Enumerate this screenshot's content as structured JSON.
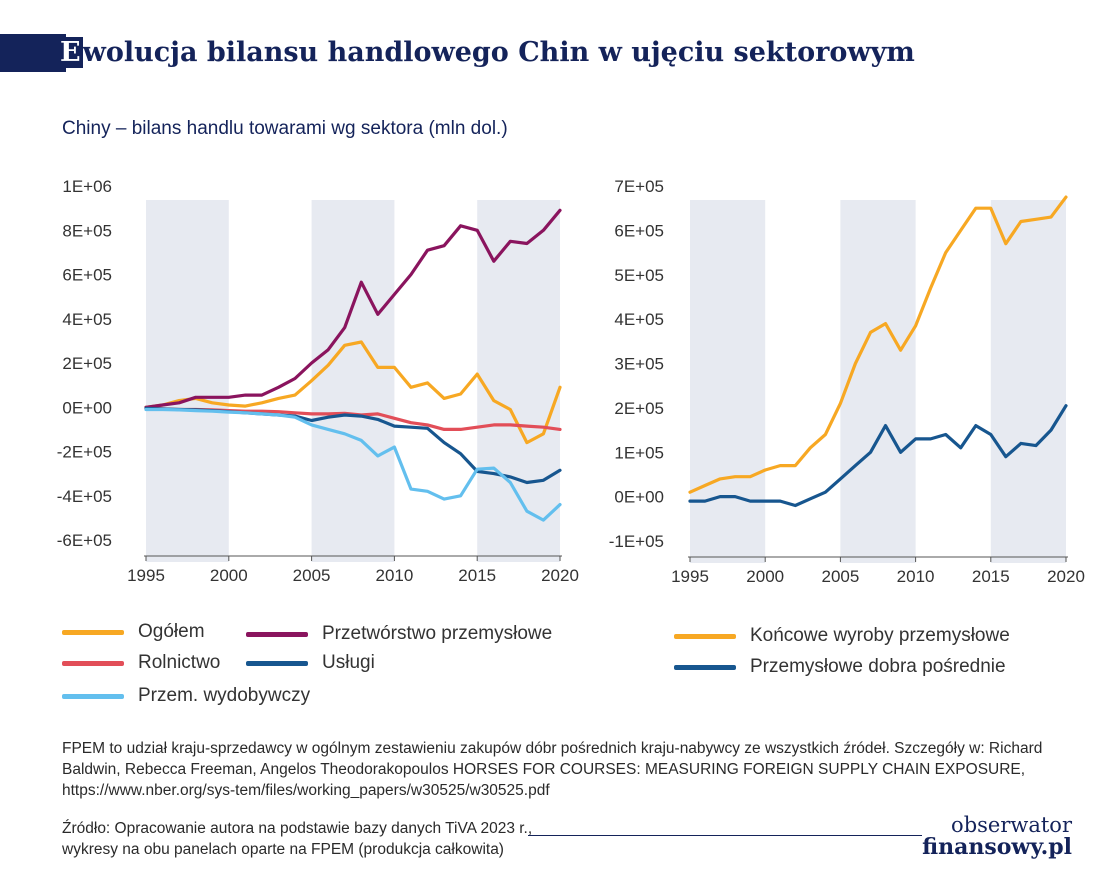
{
  "header": {
    "title_first": "E",
    "title_rest": "wolucja bilansu handlowego Chin w ujęciu sektorowym",
    "subtitle": "Chiny – bilans handlu towarami wg sektora (mln dol.)"
  },
  "colors": {
    "ogolem": "#f7a823",
    "przetworstwo": "#8a145e",
    "rolnictwo": "#e24e58",
    "uslugi": "#17568f",
    "wydobywczy": "#63bfee",
    "koncowe": "#f7a823",
    "posrednie": "#17568f",
    "shade": "#e7eaf1",
    "axis": "#555555"
  },
  "chart_data": [
    {
      "type": "line",
      "x": [
        1995,
        1996,
        1997,
        1998,
        1999,
        2000,
        2001,
        2002,
        2003,
        2004,
        2005,
        2006,
        2007,
        2008,
        2009,
        2010,
        2011,
        2012,
        2013,
        2014,
        2015,
        2016,
        2017,
        2018,
        2019,
        2020
      ],
      "ylim": [
        -600000,
        1000000
      ],
      "xlim": [
        1995,
        2020
      ],
      "yticks": [
        -600000,
        -400000,
        -200000,
        0,
        200000,
        400000,
        600000,
        800000,
        1000000
      ],
      "ytick_labels": [
        "-6E+05",
        "-4E+05",
        "-2E+05",
        "0E+00",
        "2E+05",
        "4E+05",
        "6E+05",
        "8E+05",
        "1E+06"
      ],
      "xticks": [
        1995,
        2000,
        2005,
        2010,
        2015,
        2020
      ],
      "shaded_ranges": [
        [
          1995,
          2000
        ],
        [
          2005,
          2010
        ],
        [
          2015,
          2020
        ]
      ],
      "series": [
        {
          "key": "ogolem",
          "name": "Ogółem",
          "values": [
            0,
            10000,
            30000,
            40000,
            20000,
            10000,
            5000,
            20000,
            40000,
            55000,
            120000,
            190000,
            280000,
            295000,
            180000,
            180000,
            90000,
            110000,
            40000,
            60000,
            150000,
            30000,
            -10000,
            -160000,
            -120000,
            90000
          ]
        },
        {
          "key": "przetworstwo",
          "name": "Przetwórstwo przemysłowe",
          "values": [
            0,
            10000,
            20000,
            45000,
            45000,
            45000,
            55000,
            55000,
            90000,
            130000,
            200000,
            260000,
            360000,
            565000,
            420000,
            510000,
            600000,
            710000,
            730000,
            820000,
            800000,
            660000,
            750000,
            740000,
            800000,
            890000
          ]
        },
        {
          "key": "rolnictwo",
          "name": "Rolnictwo",
          "values": [
            -5000,
            -8000,
            -10000,
            -10000,
            -12000,
            -15000,
            -18000,
            -18000,
            -20000,
            -25000,
            -30000,
            -30000,
            -28000,
            -35000,
            -30000,
            -50000,
            -70000,
            -80000,
            -100000,
            -100000,
            -90000,
            -80000,
            -80000,
            -85000,
            -90000,
            -100000
          ]
        },
        {
          "key": "uslugi",
          "name": "Usługi",
          "values": [
            -5000,
            -8000,
            -10000,
            -12000,
            -15000,
            -20000,
            -25000,
            -30000,
            -35000,
            -40000,
            -60000,
            -45000,
            -35000,
            -40000,
            -55000,
            -85000,
            -90000,
            -95000,
            -160000,
            -210000,
            -290000,
            -300000,
            -315000,
            -340000,
            -330000,
            -285000
          ]
        },
        {
          "key": "wydobywczy",
          "name": "Przem. wydobywczy",
          "values": [
            -10000,
            -10000,
            -12000,
            -15000,
            -18000,
            -22000,
            -25000,
            -30000,
            -35000,
            -45000,
            -80000,
            -100000,
            -120000,
            -150000,
            -220000,
            -180000,
            -370000,
            -380000,
            -415000,
            -400000,
            -280000,
            -275000,
            -340000,
            -470000,
            -510000,
            -440000
          ]
        }
      ]
    },
    {
      "type": "line",
      "x": [
        1995,
        1996,
        1997,
        1998,
        1999,
        2000,
        2001,
        2002,
        2003,
        2004,
        2005,
        2006,
        2007,
        2008,
        2009,
        2010,
        2011,
        2012,
        2013,
        2014,
        2015,
        2016,
        2017,
        2018,
        2019,
        2020
      ],
      "ylim": [
        -100000,
        700000
      ],
      "xlim": [
        1995,
        2020
      ],
      "yticks": [
        -100000,
        0,
        100000,
        200000,
        300000,
        400000,
        500000,
        600000,
        700000
      ],
      "ytick_labels": [
        "-1E+05",
        "0E+00",
        "1E+05",
        "2E+05",
        "3E+05",
        "4E+05",
        "5E+05",
        "6E+05",
        "7E+05"
      ],
      "xticks": [
        1995,
        2000,
        2005,
        2010,
        2015,
        2020
      ],
      "shaded_ranges": [
        [
          1995,
          2000
        ],
        [
          2005,
          2010
        ],
        [
          2015,
          2020
        ]
      ],
      "series": [
        {
          "key": "koncowe",
          "name": "Końcowe wyroby przemysłowe",
          "values": [
            10000,
            25000,
            40000,
            45000,
            45000,
            60000,
            70000,
            70000,
            110000,
            140000,
            210000,
            300000,
            370000,
            390000,
            330000,
            385000,
            470000,
            550000,
            600000,
            650000,
            650000,
            570000,
            620000,
            625000,
            630000,
            675000
          ]
        },
        {
          "key": "posrednie",
          "name": "Przemysłowe dobra pośrednie",
          "values": [
            -10000,
            -10000,
            0,
            0,
            -10000,
            -10000,
            -10000,
            -20000,
            -5000,
            10000,
            40000,
            70000,
            100000,
            160000,
            100000,
            130000,
            130000,
            140000,
            110000,
            160000,
            140000,
            90000,
            120000,
            115000,
            150000,
            205000
          ]
        }
      ]
    }
  ],
  "legend_left": [
    {
      "key": "ogolem",
      "label": "Ogółem"
    },
    {
      "key": "przetworstwo",
      "label": "Przetwórstwo przemysłowe"
    },
    {
      "key": "rolnictwo",
      "label": "Rolnictwo"
    },
    {
      "key": "uslugi",
      "label": "Usługi"
    },
    {
      "key": "wydobywczy",
      "label": "Przem. wydobywczy"
    }
  ],
  "legend_right": [
    {
      "key": "koncowe",
      "label": "Końcowe wyroby przemysłowe"
    },
    {
      "key": "posrednie",
      "label": "Przemysłowe dobra pośrednie"
    }
  ],
  "footer": {
    "note": "FPEM to udział kraju-sprzedawcy w ogólnym zestawieniu zakupów dóbr pośrednich kraju-nabywcy ze wszystkich źródeł. Szczegóły w: Richard Baldwin, Rebecca Freeman, Angelos Theodorakopoulos HORSES FOR COURSES: MEASURING FOREIGN SUPPLY CHAIN EXPOSURE, https://www.nber.org/sys-tem/files/working_papers/w30525/w30525.pdf",
    "source_line1": "Źródło: Opracowanie autora na podstawie bazy danych TiVA 2023 r.,",
    "source_line2": "wykresy na obu panelach oparte na FPEM (produkcja całkowita)",
    "logo_line1": "obserwator",
    "logo_line2": "finansowy.pl"
  }
}
